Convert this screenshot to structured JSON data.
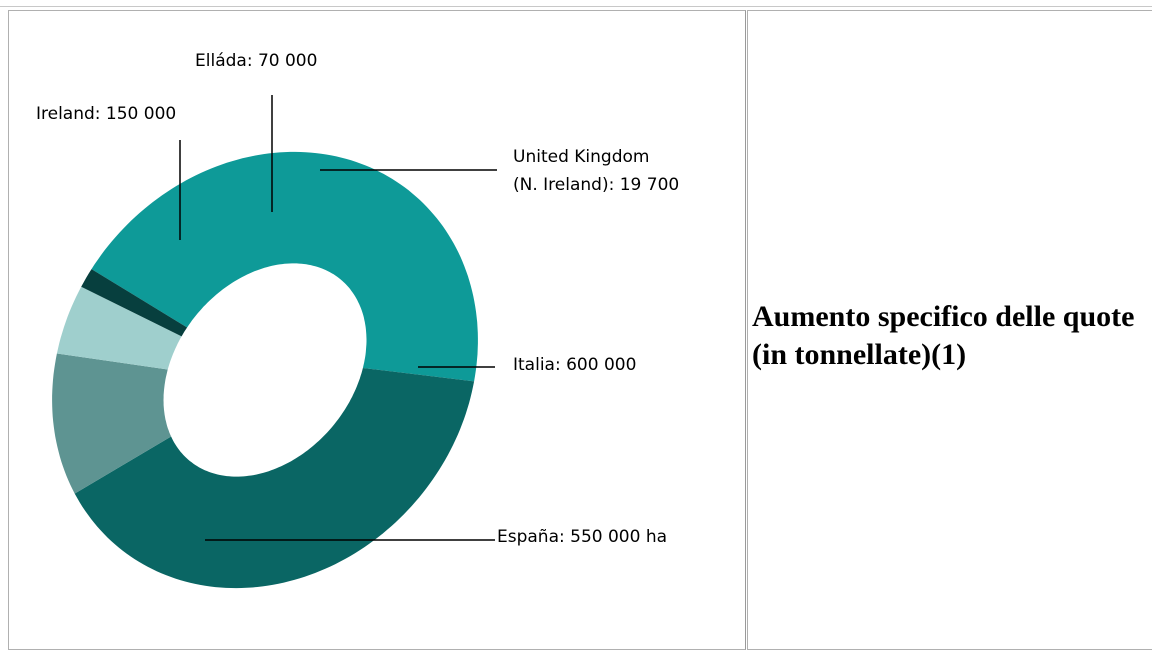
{
  "chart_data": {
    "type": "pie",
    "title": "Aumento specifico delle quote (in tonnellate)(1)",
    "labels": [
      "Italia: 600 000",
      "España: 550 000 ha",
      "Ireland: 150 000",
      "Elláda: 70 000",
      "United Kingdom (N. Ireland): 19 700"
    ],
    "categories": [
      "Italia",
      "España",
      "Ireland",
      "Elláda",
      "United Kingdom (N. Ireland)"
    ],
    "values": [
      600000,
      550000,
      150000,
      70000,
      19700
    ],
    "colors": [
      "#0e9a98",
      "#0a6664",
      "#5e9492",
      "#9fcfcd",
      "#073f3e"
    ],
    "donut": true
  }
}
